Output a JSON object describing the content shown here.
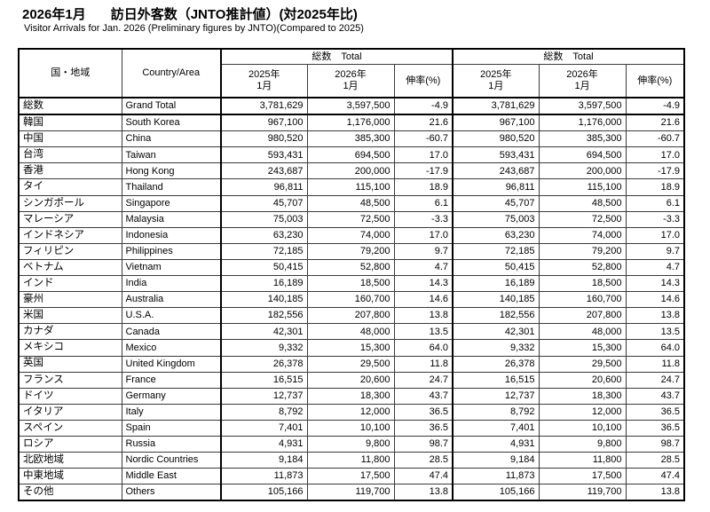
{
  "title": {
    "period": "2026年1月",
    "main": "訪日外客数（JNTO推計値）(対2025年比)"
  },
  "subtitle": "Visitor Arrivals for Jan. 2026 (Preliminary figures by JNTO)(Compared to 2025)",
  "table": {
    "header": {
      "country_jp": "国・地域",
      "country_en": "Country/Area",
      "group_total": "総数　Total",
      "year_2025": "2025年",
      "year_2026": "2026年",
      "month": "1月",
      "growth": "伸率(%)"
    },
    "rows": [
      {
        "jp": "総数",
        "en": "Grand Total",
        "v2025": "3,781,629",
        "v2026": "3,597,500",
        "growth": "-4.9"
      },
      {
        "jp": "韓国",
        "en": "South Korea",
        "v2025": "967,100",
        "v2026": "1,176,000",
        "growth": "21.6"
      },
      {
        "jp": "中国",
        "en": "China",
        "v2025": "980,520",
        "v2026": "385,300",
        "growth": "-60.7"
      },
      {
        "jp": "台湾",
        "en": "Taiwan",
        "v2025": "593,431",
        "v2026": "694,500",
        "growth": "17.0"
      },
      {
        "jp": "香港",
        "en": "Hong Kong",
        "v2025": "243,687",
        "v2026": "200,000",
        "growth": "-17.9"
      },
      {
        "jp": "タイ",
        "en": "Thailand",
        "v2025": "96,811",
        "v2026": "115,100",
        "growth": "18.9"
      },
      {
        "jp": "シンガポール",
        "en": "Singapore",
        "v2025": "45,707",
        "v2026": "48,500",
        "growth": "6.1"
      },
      {
        "jp": "マレーシア",
        "en": "Malaysia",
        "v2025": "75,003",
        "v2026": "72,500",
        "growth": "-3.3"
      },
      {
        "jp": "インドネシア",
        "en": "Indonesia",
        "v2025": "63,230",
        "v2026": "74,000",
        "growth": "17.0"
      },
      {
        "jp": "フィリピン",
        "en": "Philippines",
        "v2025": "72,185",
        "v2026": "79,200",
        "growth": "9.7"
      },
      {
        "jp": "ベトナム",
        "en": "Vietnam",
        "v2025": "50,415",
        "v2026": "52,800",
        "growth": "4.7"
      },
      {
        "jp": "インド",
        "en": "India",
        "v2025": "16,189",
        "v2026": "18,500",
        "growth": "14.3"
      },
      {
        "jp": "豪州",
        "en": "Australia",
        "v2025": "140,185",
        "v2026": "160,700",
        "growth": "14.6"
      },
      {
        "jp": "米国",
        "en": "U.S.A.",
        "v2025": "182,556",
        "v2026": "207,800",
        "growth": "13.8"
      },
      {
        "jp": "カナダ",
        "en": "Canada",
        "v2025": "42,301",
        "v2026": "48,000",
        "growth": "13.5"
      },
      {
        "jp": "メキシコ",
        "en": "Mexico",
        "v2025": "9,332",
        "v2026": "15,300",
        "growth": "64.0"
      },
      {
        "jp": "英国",
        "en": "United Kingdom",
        "v2025": "26,378",
        "v2026": "29,500",
        "growth": "11.8"
      },
      {
        "jp": "フランス",
        "en": "France",
        "v2025": "16,515",
        "v2026": "20,600",
        "growth": "24.7"
      },
      {
        "jp": "ドイツ",
        "en": "Germany",
        "v2025": "12,737",
        "v2026": "18,300",
        "growth": "43.7"
      },
      {
        "jp": "イタリア",
        "en": "Italy",
        "v2025": "8,792",
        "v2026": "12,000",
        "growth": "36.5"
      },
      {
        "jp": "スペイン",
        "en": "Spain",
        "v2025": "7,401",
        "v2026": "10,100",
        "growth": "36.5"
      },
      {
        "jp": "ロシア",
        "en": "Russia",
        "v2025": "4,931",
        "v2026": "9,800",
        "growth": "98.7"
      },
      {
        "jp": "北欧地域",
        "en": "Nordic Countries",
        "v2025": "9,184",
        "v2026": "11,800",
        "growth": "28.5"
      },
      {
        "jp": "中東地域",
        "en": "Middle East",
        "v2025": "11,873",
        "v2026": "17,500",
        "growth": "47.4"
      },
      {
        "jp": "その他",
        "en": "Others",
        "v2025": "105,166",
        "v2026": "119,700",
        "growth": "13.8"
      }
    ]
  }
}
